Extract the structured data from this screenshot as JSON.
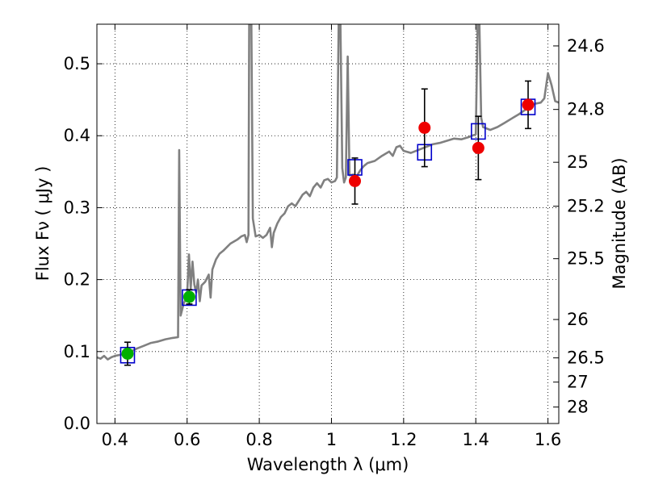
{
  "chart_data": {
    "type": "scatter",
    "xlabel": "Wavelength  λ (μm)",
    "ylabel": "Flux  Fν  ( μJy )",
    "y2label": "Magnitude (AB)",
    "xlim": [
      0.35,
      1.63
    ],
    "ylim": [
      0,
      0.555
    ],
    "grid": true,
    "x_ticks": [
      0.4,
      0.6,
      0.8,
      1.0,
      1.2,
      1.4,
      1.6
    ],
    "x_tick_labels": [
      "0.4",
      "0.6",
      "0.8",
      "1",
      "1.2",
      "1.4",
      "1.6"
    ],
    "y_ticks": [
      0.0,
      0.1,
      0.2,
      0.3,
      0.4,
      0.5
    ],
    "y_tick_labels": [
      "0.0",
      "0.1",
      "0.2",
      "0.3",
      "0.4",
      "0.5"
    ],
    "mag_ticks": [
      24.6,
      24.8,
      25,
      25.2,
      25.5,
      26,
      26.5,
      27,
      28
    ],
    "mag_tick_labels": [
      "24.6",
      "24.8",
      "25",
      "25.2",
      "25.5",
      "26",
      "26.5",
      "27",
      "28"
    ],
    "colors": {
      "spectrum": "#808080",
      "model_box": "#0000cc",
      "optical_points": "#00b000",
      "nir_points": "#ee0000",
      "error_bars": "#000000"
    },
    "series": [
      {
        "type": "line",
        "points": [
          [
            0.35,
            0.092
          ],
          [
            0.36,
            0.09
          ],
          [
            0.37,
            0.094
          ],
          [
            0.38,
            0.089
          ],
          [
            0.39,
            0.092
          ],
          [
            0.4,
            0.094
          ],
          [
            0.42,
            0.096
          ],
          [
            0.44,
            0.099
          ],
          [
            0.46,
            0.104
          ],
          [
            0.48,
            0.108
          ],
          [
            0.5,
            0.112
          ],
          [
            0.52,
            0.114
          ],
          [
            0.54,
            0.117
          ],
          [
            0.56,
            0.119
          ],
          [
            0.575,
            0.12
          ],
          [
            0.578,
            0.38
          ],
          [
            0.582,
            0.15
          ],
          [
            0.59,
            0.166
          ],
          [
            0.6,
            0.178
          ],
          [
            0.605,
            0.235
          ],
          [
            0.61,
            0.188
          ],
          [
            0.615,
            0.225
          ],
          [
            0.62,
            0.193
          ],
          [
            0.625,
            0.182
          ],
          [
            0.63,
            0.2
          ],
          [
            0.635,
            0.17
          ],
          [
            0.64,
            0.192
          ],
          [
            0.65,
            0.197
          ],
          [
            0.66,
            0.207
          ],
          [
            0.665,
            0.175
          ],
          [
            0.67,
            0.214
          ],
          [
            0.68,
            0.228
          ],
          [
            0.69,
            0.236
          ],
          [
            0.7,
            0.24
          ],
          [
            0.72,
            0.25
          ],
          [
            0.74,
            0.256
          ],
          [
            0.75,
            0.26
          ],
          [
            0.76,
            0.262
          ],
          [
            0.765,
            0.252
          ],
          [
            0.77,
            0.262
          ],
          [
            0.772,
            0.555
          ],
          [
            0.778,
            0.555
          ],
          [
            0.782,
            0.285
          ],
          [
            0.79,
            0.26
          ],
          [
            0.8,
            0.262
          ],
          [
            0.81,
            0.258
          ],
          [
            0.82,
            0.262
          ],
          [
            0.83,
            0.272
          ],
          [
            0.835,
            0.245
          ],
          [
            0.84,
            0.265
          ],
          [
            0.85,
            0.278
          ],
          [
            0.86,
            0.287
          ],
          [
            0.87,
            0.292
          ],
          [
            0.88,
            0.302
          ],
          [
            0.89,
            0.306
          ],
          [
            0.9,
            0.302
          ],
          [
            0.91,
            0.31
          ],
          [
            0.92,
            0.318
          ],
          [
            0.93,
            0.322
          ],
          [
            0.94,
            0.316
          ],
          [
            0.95,
            0.328
          ],
          [
            0.96,
            0.334
          ],
          [
            0.97,
            0.328
          ],
          [
            0.98,
            0.338
          ],
          [
            0.99,
            0.34
          ],
          [
            1.0,
            0.335
          ],
          [
            1.01,
            0.337
          ],
          [
            1.015,
            0.342
          ],
          [
            1.02,
            0.555
          ],
          [
            1.025,
            0.555
          ],
          [
            1.03,
            0.355
          ],
          [
            1.035,
            0.335
          ],
          [
            1.04,
            0.342
          ],
          [
            1.045,
            0.51
          ],
          [
            1.05,
            0.345
          ],
          [
            1.06,
            0.346
          ],
          [
            1.07,
            0.344
          ],
          [
            1.08,
            0.352
          ],
          [
            1.09,
            0.358
          ],
          [
            1.1,
            0.362
          ],
          [
            1.12,
            0.365
          ],
          [
            1.14,
            0.372
          ],
          [
            1.16,
            0.378
          ],
          [
            1.17,
            0.372
          ],
          [
            1.18,
            0.384
          ],
          [
            1.19,
            0.386
          ],
          [
            1.2,
            0.379
          ],
          [
            1.22,
            0.376
          ],
          [
            1.24,
            0.38
          ],
          [
            1.26,
            0.384
          ],
          [
            1.28,
            0.388
          ],
          [
            1.3,
            0.39
          ],
          [
            1.32,
            0.393
          ],
          [
            1.34,
            0.396
          ],
          [
            1.36,
            0.395
          ],
          [
            1.38,
            0.398
          ],
          [
            1.39,
            0.4
          ],
          [
            1.4,
            0.402
          ],
          [
            1.405,
            0.555
          ],
          [
            1.41,
            0.555
          ],
          [
            1.415,
            0.425
          ],
          [
            1.42,
            0.412
          ],
          [
            1.44,
            0.408
          ],
          [
            1.46,
            0.412
          ],
          [
            1.48,
            0.418
          ],
          [
            1.5,
            0.424
          ],
          [
            1.52,
            0.43
          ],
          [
            1.54,
            0.437
          ],
          [
            1.56,
            0.444
          ],
          [
            1.58,
            0.446
          ],
          [
            1.59,
            0.452
          ],
          [
            1.6,
            0.487
          ],
          [
            1.61,
            0.47
          ],
          [
            1.62,
            0.448
          ],
          [
            1.63,
            0.446
          ]
        ]
      },
      {
        "type": "scatter",
        "points": [
          {
            "x": 0.435,
            "y": 0.097,
            "yerr": 0.016
          },
          {
            "x": 0.606,
            "y": 0.176,
            "yerr": 0.01
          }
        ]
      },
      {
        "type": "scatter",
        "points": [
          {
            "x": 1.065,
            "y": 0.337,
            "yerr": 0.032
          },
          {
            "x": 1.258,
            "y": 0.411,
            "yerr": 0.054
          },
          {
            "x": 1.407,
            "y": 0.383,
            "yerr": 0.044
          },
          {
            "x": 1.545,
            "y": 0.443,
            "yerr": 0.033
          }
        ]
      },
      {
        "type": "scatter",
        "points": [
          {
            "x": 0.435,
            "y": 0.095
          },
          {
            "x": 0.606,
            "y": 0.175
          },
          {
            "x": 1.065,
            "y": 0.356
          },
          {
            "x": 1.258,
            "y": 0.377
          },
          {
            "x": 1.407,
            "y": 0.406
          },
          {
            "x": 1.545,
            "y": 0.44
          }
        ]
      }
    ]
  }
}
